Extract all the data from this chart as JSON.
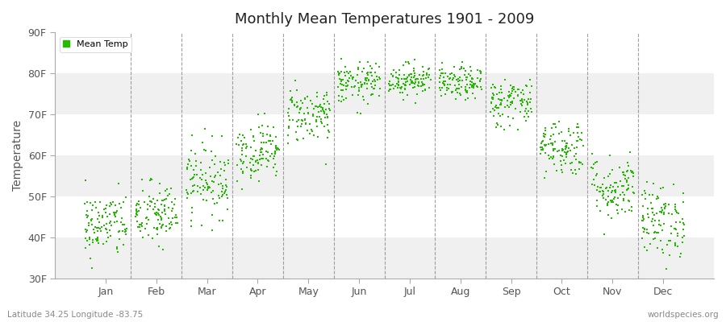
{
  "title": "Monthly Mean Temperatures 1901 - 2009",
  "ylabel": "Temperature",
  "xlabel_months": [
    "Jan",
    "Feb",
    "Mar",
    "Apr",
    "May",
    "Jun",
    "Jul",
    "Aug",
    "Sep",
    "Oct",
    "Nov",
    "Dec"
  ],
  "footer_left": "Latitude 34.25 Longitude -83.75",
  "footer_right": "worldspecies.org",
  "legend_label": "Mean Temp",
  "ylim": [
    30,
    90
  ],
  "yticks": [
    30,
    40,
    50,
    60,
    70,
    80,
    90
  ],
  "ytick_labels": [
    "30F",
    "40F",
    "50F",
    "60F",
    "70F",
    "80F",
    "90F"
  ],
  "dot_color": "#22bb00",
  "background_color": "#ffffff",
  "band_colors": [
    "#f0f0f0",
    "#ffffff",
    "#f0f0f0",
    "#ffffff",
    "#f0f0f0",
    "#ffffff"
  ],
  "monthly_means": [
    43.0,
    45.5,
    54.0,
    61.0,
    70.0,
    77.5,
    78.5,
    77.5,
    73.0,
    62.0,
    52.0,
    44.0
  ],
  "monthly_stds": [
    4.0,
    4.0,
    4.5,
    3.5,
    3.5,
    2.5,
    2.0,
    2.0,
    3.0,
    3.5,
    4.0,
    4.5
  ],
  "n_years": 109,
  "seed": 42,
  "dot_size": 4,
  "xlim": [
    0.0,
    13.0
  ]
}
